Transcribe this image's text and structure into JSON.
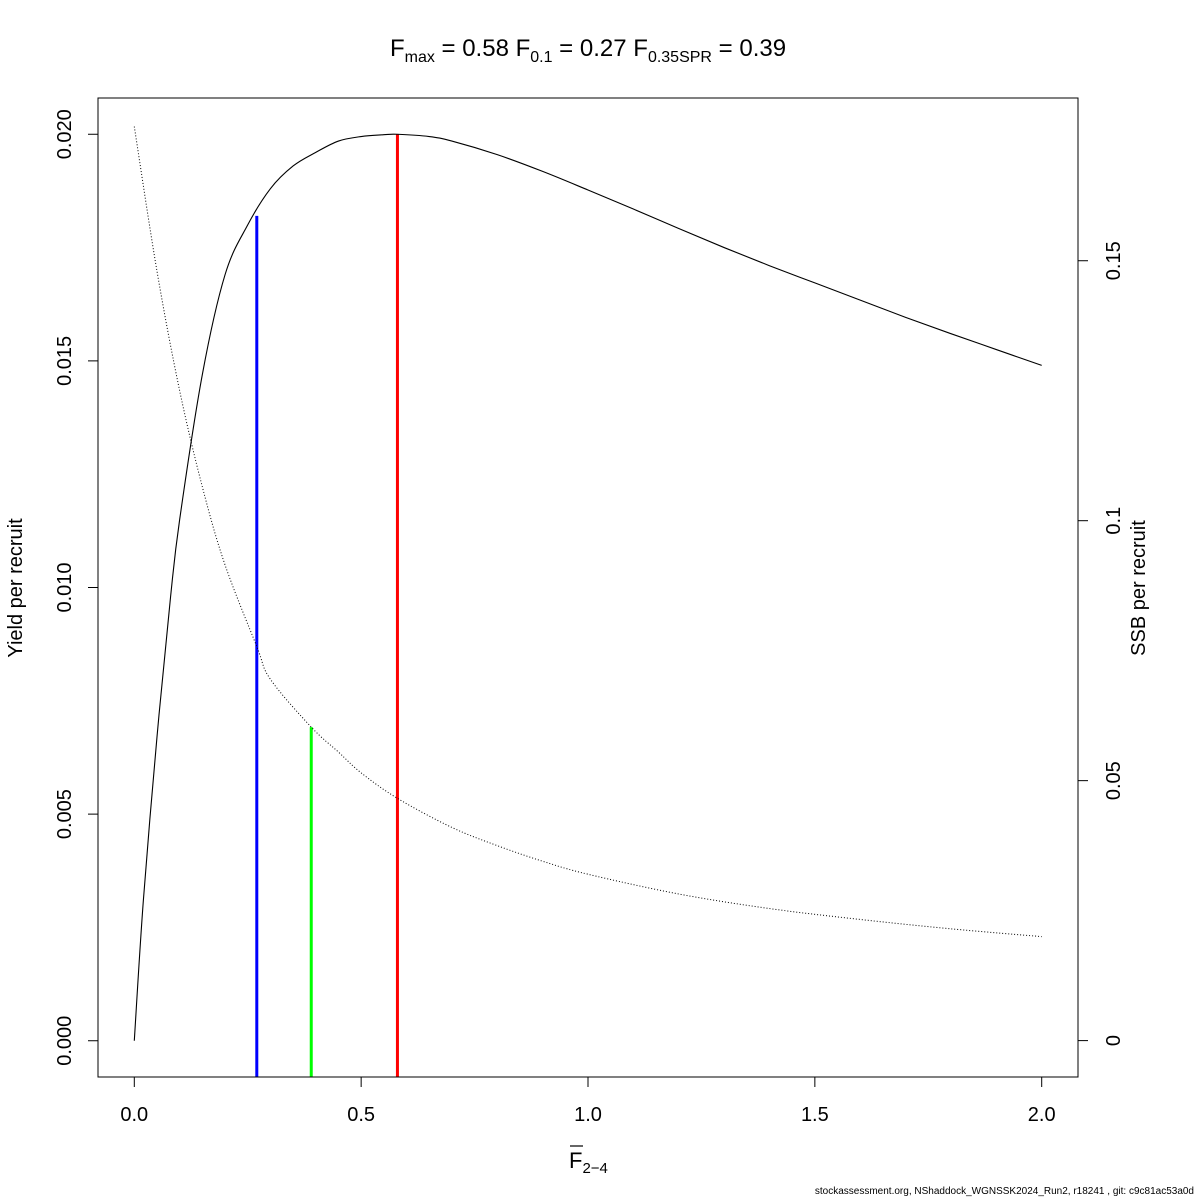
{
  "chart_data": {
    "type": "line",
    "title": {
      "fmax_label": "F",
      "fmax_sub": "max",
      "fmax_value": "0.58",
      "f01_label": "F",
      "f01_sub": "0.1",
      "f01_value": "0.27",
      "fspr_label": "F",
      "fspr_sub": "0.35SPR",
      "fspr_value": "0.39"
    },
    "xlabel": {
      "base": "F",
      "sub": "2−4"
    },
    "ylabel_left": "Yield per recruit",
    "ylabel_right": "SSB per recruit",
    "xlim": [
      -0.08,
      2.08
    ],
    "ylim_left": [
      -0.0008,
      0.0208
    ],
    "ylim_right": [
      -0.007,
      0.1813
    ],
    "x_ticks": [
      {
        "value": 0.0,
        "label": "0.0"
      },
      {
        "value": 0.5,
        "label": "0.5"
      },
      {
        "value": 1.0,
        "label": "1.0"
      },
      {
        "value": 1.5,
        "label": "1.5"
      },
      {
        "value": 2.0,
        "label": "2.0"
      }
    ],
    "y_left_ticks": [
      {
        "value": 0.0,
        "label": "0.000"
      },
      {
        "value": 0.005,
        "label": "0.005"
      },
      {
        "value": 0.01,
        "label": "0.010"
      },
      {
        "value": 0.015,
        "label": "0.015"
      },
      {
        "value": 0.02,
        "label": "0.020"
      }
    ],
    "y_right_ticks": [
      {
        "value": 0.0,
        "label": "0"
      },
      {
        "value": 0.05,
        "label": "0.05"
      },
      {
        "value": 0.1,
        "label": "0.1"
      },
      {
        "value": 0.15,
        "label": "0.15"
      }
    ],
    "series": [
      {
        "axis": "left",
        "style": "solid",
        "color": "#000000",
        "x": [
          0,
          0.02,
          0.05,
          0.08,
          0.1,
          0.15,
          0.2,
          0.25,
          0.3,
          0.35,
          0.4,
          0.45,
          0.5,
          0.55,
          0.58,
          0.65,
          0.7,
          0.8,
          0.9,
          1.0,
          1.1,
          1.2,
          1.3,
          1.4,
          1.5,
          1.6,
          1.7,
          1.8,
          1.9,
          2.0
        ],
        "y": [
          0,
          0.0031,
          0.0067,
          0.0098,
          0.0115,
          0.0147,
          0.0169,
          0.018,
          0.0188,
          0.0193,
          0.0196,
          0.01985,
          0.01995,
          0.01999,
          0.02,
          0.01995,
          0.01985,
          0.01955,
          0.01918,
          0.01877,
          0.01835,
          0.01792,
          0.0175,
          0.0171,
          0.01672,
          0.01634,
          0.01596,
          0.0156,
          0.01525,
          0.0149
        ]
      },
      {
        "axis": "right",
        "style": "dotted",
        "color": "#000000",
        "x": [
          0,
          0.05,
          0.1,
          0.15,
          0.2,
          0.27,
          0.3,
          0.39,
          0.45,
          0.5,
          0.58,
          0.7,
          0.8,
          0.9,
          1.0,
          1.2,
          1.4,
          1.6,
          1.8,
          2.0
        ],
        "y": [
          0.1758,
          0.148,
          0.125,
          0.1065,
          0.0915,
          0.0758,
          0.0695,
          0.0603,
          0.0555,
          0.0515,
          0.0466,
          0.041,
          0.0375,
          0.0345,
          0.032,
          0.0282,
          0.0254,
          0.0233,
          0.0215,
          0.02
        ]
      }
    ],
    "reference_lines": [
      {
        "x": 0.27,
        "axis": "left",
        "y_top": 0.0182,
        "color": "#0000ff"
      },
      {
        "x": 0.39,
        "axis": "right",
        "y_top": 0.0603,
        "color": "#00ff00"
      },
      {
        "x": 0.58,
        "axis": "left",
        "y_top": 0.02,
        "color": "#ff0000"
      }
    ]
  },
  "footer": "stockassessment.org, NShaddock_WGNSSK2024_Run2, r18241 , git: c9c81ac53a0d"
}
